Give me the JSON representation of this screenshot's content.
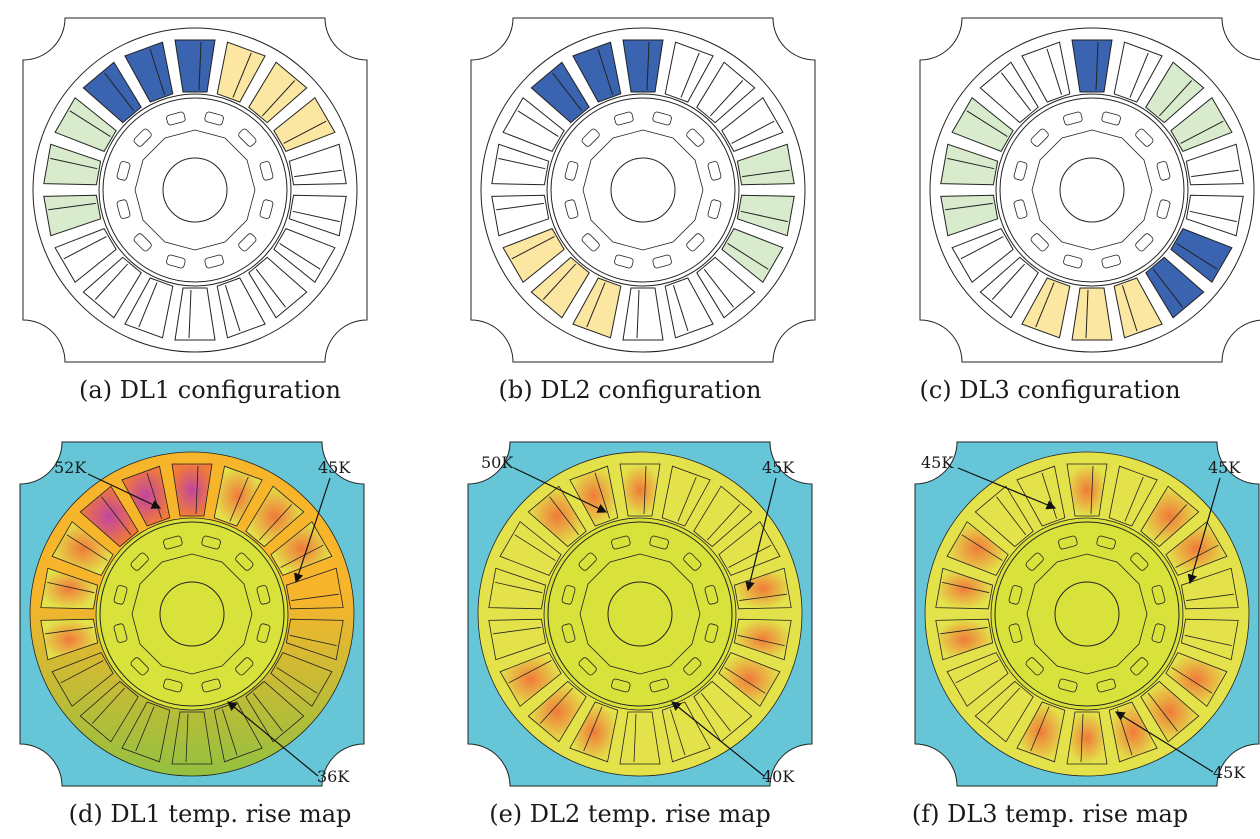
{
  "colors": {
    "phase_a": "#3a63b0",
    "phase_b": "#fbe7a1",
    "phase_c": "#d8ebcc",
    "empty_slot": "#ffffff",
    "outline": "#222222",
    "map_background": "#66c6d8",
    "map_core_warm": "#f7b52c",
    "map_core_mild": "#e3e24a",
    "map_core_cool": "#93c140",
    "map_rotor": "#d8e23a",
    "map_hot": "#c145a0",
    "map_warm_slot": "#f07a3a"
  },
  "panels": [
    {
      "id": "a",
      "caption": "(a)  DL1 configuration"
    },
    {
      "id": "b",
      "caption": "(b)  DL2 configuration"
    },
    {
      "id": "c",
      "caption": "(c)  DL3 configuration"
    },
    {
      "id": "d",
      "caption": "(d)  DL1 temp. rise map",
      "labels": [
        "52K",
        "45K",
        "36K"
      ]
    },
    {
      "id": "e",
      "caption": "(e)  DL2 temp. rise map",
      "labels": [
        "50K",
        "45K",
        "40K"
      ]
    },
    {
      "id": "f",
      "caption": "(f)  DL3 temp. rise map",
      "labels": [
        "45K",
        "45K",
        "45K"
      ]
    }
  ]
}
